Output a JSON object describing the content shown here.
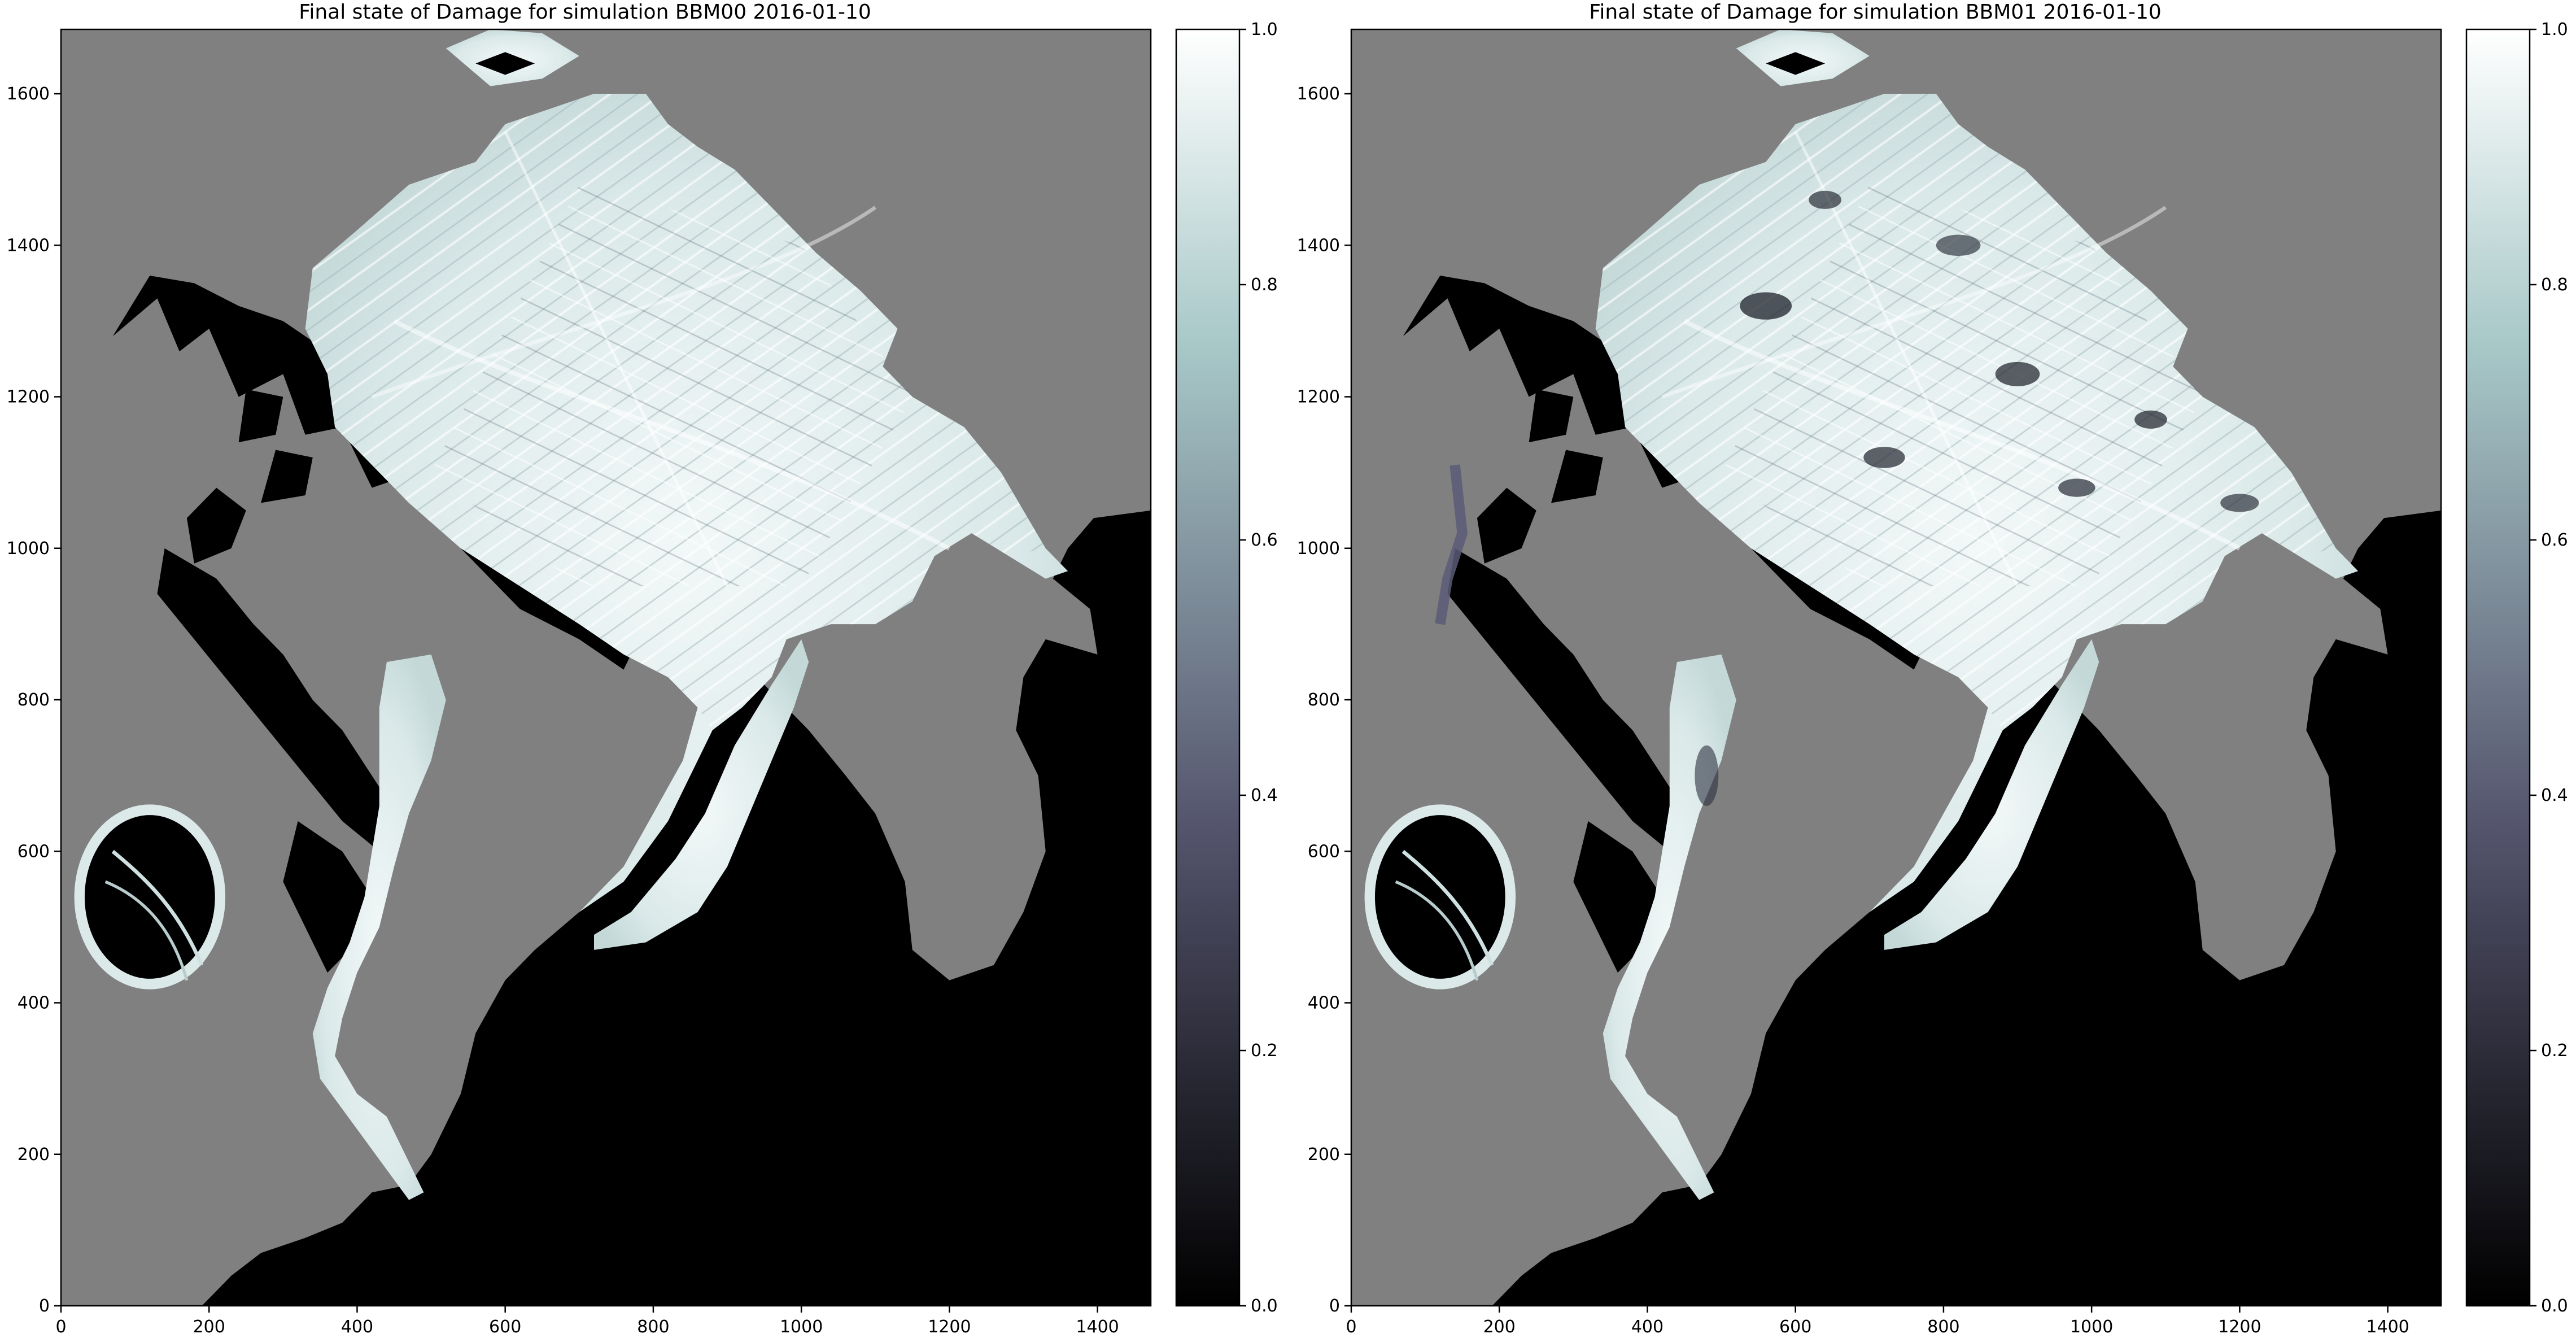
{
  "chart_data": [
    {
      "type": "heatmap",
      "title": "Final state of Damage for simulation BBM00 2016-01-10",
      "xlabel": "",
      "ylabel": "",
      "xlim": [
        0,
        1472
      ],
      "ylim": [
        0,
        1685
      ],
      "xticks": [
        0,
        200,
        400,
        600,
        800,
        1000,
        1200,
        1400
      ],
      "yticks": [
        0,
        200,
        400,
        600,
        800,
        1000,
        1200,
        1400,
        1600
      ],
      "colormap": "bone",
      "colorbar": {
        "range": [
          0.0,
          1.0
        ],
        "ticks": [
          "0.0",
          "0.2",
          "0.4",
          "0.6",
          "0.8",
          "1.0"
        ]
      },
      "land_color": "#808080",
      "open_water_color": "#000000",
      "grid": false
    },
    {
      "type": "heatmap",
      "title": "Final state of Damage for simulation BBM01 2016-01-10",
      "xlabel": "",
      "ylabel": "",
      "xlim": [
        0,
        1472
      ],
      "ylim": [
        0,
        1685
      ],
      "xticks": [
        0,
        200,
        400,
        600,
        800,
        1000,
        1200,
        1400
      ],
      "yticks": [
        0,
        200,
        400,
        600,
        800,
        1000,
        1200,
        1400,
        1600
      ],
      "colormap": "bone",
      "colorbar": {
        "range": [
          0.0,
          1.0
        ],
        "ticks": [
          "0.0",
          "0.2",
          "0.4",
          "0.6",
          "0.8",
          "1.0"
        ]
      },
      "land_color": "#808080",
      "open_water_color": "#000000",
      "grid": false
    }
  ]
}
